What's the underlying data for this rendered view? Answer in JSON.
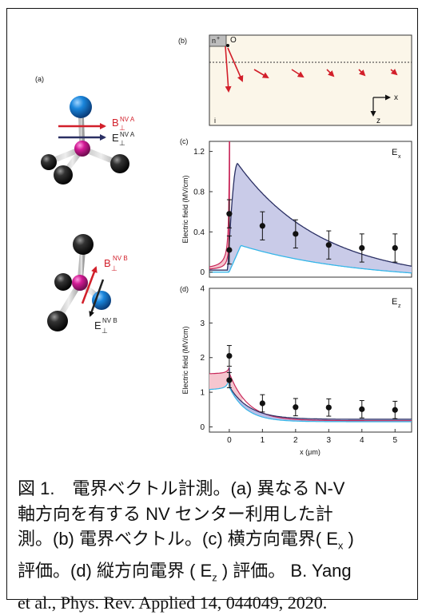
{
  "colors": {
    "red": "#d21f2a",
    "navy": "#2a2f63",
    "cyan": "#35b6e8",
    "magenta": "#c81f8c",
    "atom_blue": "#1580d6",
    "fill_c": "#c9cbe8",
    "fill_d_blue": "#b9bde6",
    "fill_d_pink": "#f5c6cf",
    "bg_b": "#fbf6e9"
  },
  "panel_a": {
    "label": "(a)",
    "top": {
      "b_main": "B",
      "b_sub": "⊥",
      "b_sup": "NV A",
      "e_main": "E",
      "e_sub": "⊥",
      "e_sup": "NV A"
    },
    "bottom": {
      "b_main": "B",
      "b_sub": "⊥",
      "b_sup": "NV B",
      "e_main": "E",
      "e_sub": "⊥",
      "e_sup": "NV B"
    }
  },
  "panel_b": {
    "label": "(b)",
    "n_plus": "n",
    "n_plus_sup": "+",
    "o_label": "O",
    "i_label": "i",
    "x_axis": "x",
    "z_axis": "z"
  },
  "chart_data": [
    {
      "panel": "(c)",
      "type": "line",
      "ylabel": "Electric field (MV/cm)",
      "annotation": "E",
      "annotation_sub": "x",
      "xlim": [
        -0.6,
        5.5
      ],
      "ylim": [
        -0.05,
        1.3
      ],
      "yticks": [
        0,
        0.4,
        0.8,
        1.2
      ],
      "ytick_labels": [
        "0",
        "0.4",
        "0.8",
        "1.2"
      ],
      "series": [
        {
          "values": [
            [
              0,
              0.22
            ],
            [
              0,
              0.58
            ],
            [
              1,
              0.46
            ],
            [
              2,
              0.38
            ],
            [
              3,
              0.27
            ],
            [
              4,
              0.24
            ],
            [
              5,
              0.24
            ]
          ],
          "errors": [
            0.14,
            0.14,
            0.14,
            0.14,
            0.14,
            0.14,
            0.14
          ]
        }
      ]
    },
    {
      "panel": "(d)",
      "type": "line",
      "ylabel": "Electric field (MV/cm)",
      "annotation": "E",
      "annotation_sub": "z",
      "xlabel": "x (μm)",
      "xticks": [
        0,
        1,
        2,
        3,
        4,
        5
      ],
      "xtick_labels": [
        "0",
        "1",
        "2",
        "3",
        "4",
        "5"
      ],
      "xlim": [
        -0.6,
        5.5
      ],
      "ylim": [
        -0.15,
        4
      ],
      "yticks": [
        0,
        1,
        2,
        3,
        4
      ],
      "ytick_labels": [
        "0",
        "1",
        "2",
        "3",
        "4"
      ],
      "series": [
        {
          "values": [
            [
              0,
              1.35
            ],
            [
              0,
              2.05
            ],
            [
              1,
              0.68
            ],
            [
              2,
              0.57
            ],
            [
              3,
              0.56
            ],
            [
              4,
              0.51
            ],
            [
              5,
              0.49
            ]
          ],
          "errors": [
            0.22,
            0.3,
            0.25,
            0.25,
            0.25,
            0.25,
            0.25
          ]
        }
      ]
    }
  ],
  "caption": {
    "line1": "図 1.　電界ベクトル計測。(a) 異なる N-V",
    "line2": "軸方向を有する NV センター利用した計",
    "line3a": "測。(b) 電界ベクトル。(c) 横方向電界( E",
    "ex_sub": "x",
    "line3b": " )",
    "line4a": "評価。(d) 縦方向電界 ( E",
    "ez_sub": "z",
    "line4b": " ) 評価。 B. Yang",
    "line5": "et al., Phys. Rev. Applied 14, 044049, 2020."
  }
}
